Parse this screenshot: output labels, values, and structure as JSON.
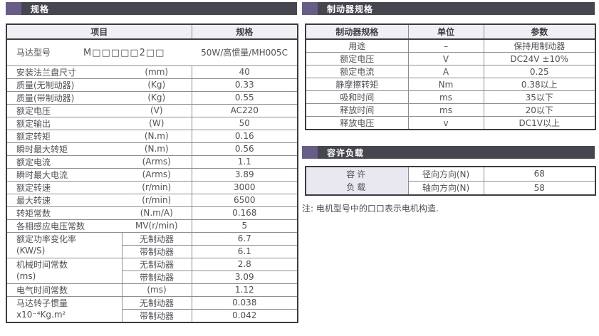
{
  "spec_section": {
    "title": "规格",
    "columns": {
      "item": "项目",
      "value": "规格"
    },
    "rows": [
      {
        "type": "model",
        "label": "马达型号",
        "model": "M□□□□□2□□",
        "value": "50W/高惯量/MH005C"
      },
      {
        "type": "simple",
        "label": "安装法兰盘尺寸",
        "unit": "(mm)",
        "value": "40"
      },
      {
        "type": "simple",
        "label": "质量(无制动器)",
        "unit": "(Kg)",
        "value": "0.33"
      },
      {
        "type": "simple",
        "label": "质量(带制动器)",
        "unit": "(Kg)",
        "value": "0.55"
      },
      {
        "type": "simple",
        "label": "额定电压",
        "unit": "(V)",
        "value": "AC220"
      },
      {
        "type": "simple",
        "label": "额定输出",
        "unit": "(W)",
        "value": "50"
      },
      {
        "type": "simple",
        "label": "额定转矩",
        "unit": "(N.m)",
        "value": "0.16"
      },
      {
        "type": "simple",
        "label": "瞬时最大转矩",
        "unit": "(N.m)",
        "value": "0.56"
      },
      {
        "type": "simple",
        "label": "额定电流",
        "unit": "(Arms)",
        "value": "1.1"
      },
      {
        "type": "simple",
        "label": "瞬时最大电流",
        "unit": "(Arms)",
        "value": "3.89"
      },
      {
        "type": "simple",
        "label": "额定转速",
        "unit": "(r/min)",
        "value": "3000"
      },
      {
        "type": "simple",
        "label": "最大转速",
        "unit": "(r/min)",
        "value": "6500"
      },
      {
        "type": "simple",
        "label": "转矩常数",
        "unit": "(N.m/A)",
        "value": "0.168"
      },
      {
        "type": "simple",
        "label": "各相感应电压常数",
        "unit": "MV(r/min)",
        "value": "5"
      },
      {
        "type": "group",
        "label_lines": [
          "额定功率变化率",
          "(KW/S)"
        ],
        "subs": [
          {
            "unit": "无制动器",
            "value": "6.7"
          },
          {
            "unit": "带制动器",
            "value": "6.1"
          }
        ]
      },
      {
        "type": "group",
        "label_lines": [
          "机械时间常数",
          "(ms)"
        ],
        "subs": [
          {
            "unit": "无制动器",
            "value": "2.8"
          },
          {
            "unit": "带制动器",
            "value": "3.09"
          }
        ]
      },
      {
        "type": "bordered",
        "label": "电气时间常数",
        "unit": "(ms)",
        "value": "1.12"
      },
      {
        "type": "group",
        "label_lines": [
          "马达转子惯量",
          "x10⁻⁴Kg.m²"
        ],
        "subs": [
          {
            "unit": "无制动器",
            "value": "0.038"
          },
          {
            "unit": "带制动器",
            "value": "0.042"
          }
        ]
      }
    ]
  },
  "brake_section": {
    "title": "制动器规格",
    "columns": {
      "item": "制动器规格",
      "unit": "单位",
      "value": "参数"
    },
    "rows": [
      {
        "label": "用途",
        "unit": "–",
        "value": "保持用制动器"
      },
      {
        "label": "额定电压",
        "unit": "V",
        "value": "DC24V ±10%"
      },
      {
        "label": "额定电流",
        "unit": "A",
        "value": "0.25"
      },
      {
        "label": "静摩擦转矩",
        "unit": "Nm",
        "value": "0.38以上"
      },
      {
        "label": "吸和时间",
        "unit": "ms",
        "value": "35以下"
      },
      {
        "label": "释放时间",
        "unit": "ms",
        "value": "20以下"
      },
      {
        "label": "释放电压",
        "unit": "v",
        "value": "DC1V以上"
      }
    ]
  },
  "load_section": {
    "title": "容许负载",
    "label_lines": [
      "容许",
      "负载"
    ],
    "rows": [
      {
        "direction": "径向方向(N)",
        "value": "68"
      },
      {
        "direction": "轴向方向(N)",
        "value": "58"
      }
    ]
  },
  "note": "注: 电机型号中的口口表示电机构造.",
  "colors": {
    "accent_purple": "#685d88",
    "bar_background": "#46464e",
    "table_header_background": "#f0f0f4",
    "load_cell_background": "#e9e8f1",
    "outer_border": "#3b3b42",
    "inner_border": "#8e8e95"
  }
}
